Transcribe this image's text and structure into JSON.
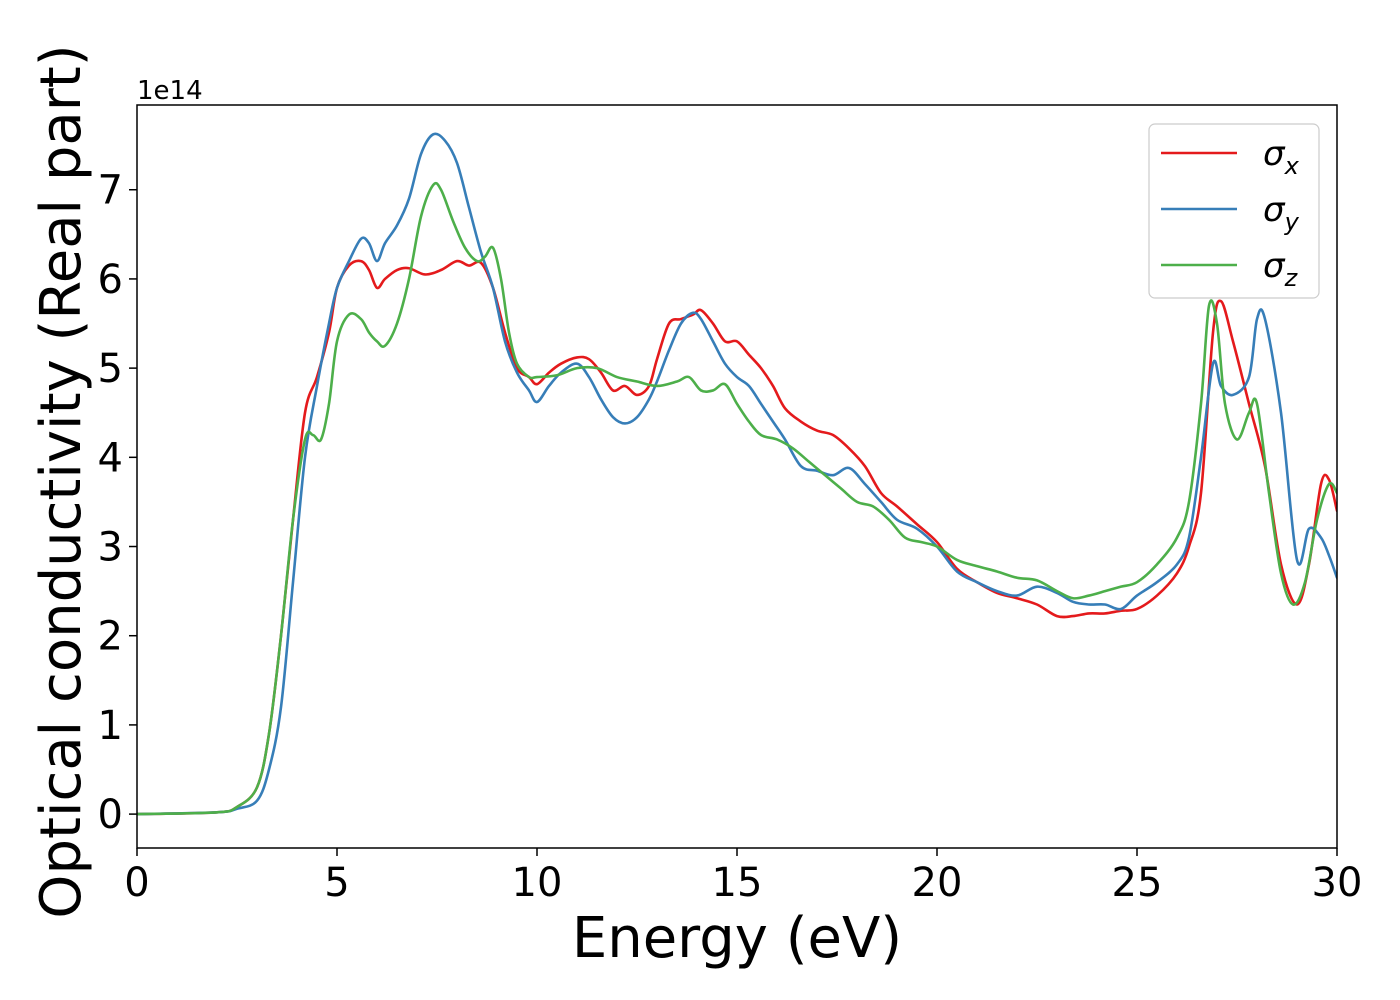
{
  "chart_data": {
    "type": "line",
    "title": "",
    "xlabel": "Energy (eV)",
    "ylabel": "Optical conductivity (Real part)",
    "y_offset_label": "1e14",
    "y_scale_factor": 100000000000000.0,
    "xlim": [
      0,
      30
    ],
    "ylim": [
      -0.38,
      7.95
    ],
    "x_ticks": [
      0,
      5,
      10,
      15,
      20,
      25,
      30
    ],
    "x_tick_labels": [
      "0",
      "5",
      "10",
      "15",
      "20",
      "25",
      "30"
    ],
    "y_ticks": [
      0,
      1,
      2,
      3,
      4,
      5,
      6,
      7
    ],
    "y_tick_labels": [
      "0",
      "1",
      "2",
      "3",
      "4",
      "5",
      "6",
      "7"
    ],
    "grid": false,
    "legend_position": "top-right",
    "series": [
      {
        "name": "σx",
        "symbol": "σ",
        "subscript": "x",
        "color": "#e41a1c",
        "x": [
          0,
          2,
          2.5,
          3.0,
          3.3,
          3.6,
          3.9,
          4.2,
          4.5,
          4.8,
          5.0,
          5.3,
          5.6,
          5.8,
          6.0,
          6.2,
          6.5,
          6.8,
          7.2,
          7.6,
          8.0,
          8.3,
          8.6,
          8.9,
          9.2,
          9.5,
          9.8,
          10.0,
          10.3,
          10.6,
          11.0,
          11.3,
          11.6,
          11.9,
          12.2,
          12.5,
          12.8,
          13.0,
          13.3,
          13.6,
          13.9,
          14.1,
          14.4,
          14.7,
          15.0,
          15.3,
          15.6,
          15.9,
          16.2,
          16.6,
          17.0,
          17.4,
          17.8,
          18.2,
          18.6,
          19.0,
          19.5,
          20.0,
          20.5,
          21.0,
          21.5,
          22.0,
          22.5,
          23.0,
          23.4,
          23.8,
          24.2,
          24.6,
          25.0,
          25.5,
          26.0,
          26.3,
          26.6,
          26.9,
          27.1,
          27.4,
          27.8,
          28.2,
          28.6,
          29.0,
          29.3,
          29.6,
          29.8,
          30.0
        ],
        "values": [
          0,
          0.02,
          0.08,
          0.3,
          0.9,
          2.0,
          3.3,
          4.5,
          4.9,
          5.4,
          5.9,
          6.15,
          6.2,
          6.1,
          5.9,
          6.0,
          6.1,
          6.12,
          6.05,
          6.1,
          6.2,
          6.15,
          6.18,
          5.9,
          5.4,
          5.0,
          4.9,
          4.82,
          4.95,
          5.05,
          5.12,
          5.1,
          4.95,
          4.75,
          4.8,
          4.7,
          4.8,
          5.1,
          5.5,
          5.55,
          5.6,
          5.65,
          5.5,
          5.3,
          5.3,
          5.15,
          5.0,
          4.8,
          4.55,
          4.4,
          4.3,
          4.25,
          4.1,
          3.9,
          3.6,
          3.45,
          3.25,
          3.05,
          2.75,
          2.6,
          2.48,
          2.42,
          2.35,
          2.22,
          2.22,
          2.25,
          2.25,
          2.28,
          2.3,
          2.45,
          2.7,
          3.0,
          3.6,
          5.4,
          5.75,
          5.3,
          4.6,
          3.9,
          2.8,
          2.35,
          2.8,
          3.7,
          3.75,
          3.4
        ]
      },
      {
        "name": "σy",
        "symbol": "σ",
        "subscript": "y",
        "color": "#377eb8",
        "x": [
          0,
          2,
          2.5,
          3.0,
          3.3,
          3.6,
          3.9,
          4.2,
          4.5,
          4.8,
          5.0,
          5.3,
          5.6,
          5.8,
          6.0,
          6.2,
          6.5,
          6.8,
          7.1,
          7.4,
          7.7,
          8.0,
          8.3,
          8.6,
          8.9,
          9.2,
          9.5,
          9.8,
          10.0,
          10.3,
          10.6,
          11.0,
          11.3,
          11.6,
          11.9,
          12.2,
          12.5,
          12.8,
          13.0,
          13.3,
          13.6,
          13.9,
          14.1,
          14.4,
          14.7,
          15.0,
          15.3,
          15.6,
          15.9,
          16.2,
          16.6,
          17.0,
          17.4,
          17.8,
          18.2,
          18.6,
          19.0,
          19.5,
          20.0,
          20.5,
          21.0,
          21.5,
          22.0,
          22.5,
          23.0,
          23.4,
          23.8,
          24.2,
          24.6,
          25.0,
          25.5,
          26.0,
          26.3,
          26.6,
          26.9,
          27.1,
          27.4,
          27.8,
          28.0,
          28.2,
          28.6,
          29.0,
          29.3,
          29.6,
          29.8,
          30.0
        ],
        "values": [
          0,
          0.02,
          0.06,
          0.15,
          0.5,
          1.2,
          2.6,
          4.0,
          4.8,
          5.5,
          5.9,
          6.2,
          6.45,
          6.4,
          6.2,
          6.4,
          6.6,
          6.9,
          7.4,
          7.62,
          7.55,
          7.3,
          6.8,
          6.3,
          5.9,
          5.3,
          4.95,
          4.75,
          4.62,
          4.8,
          4.95,
          5.05,
          4.9,
          4.65,
          4.45,
          4.38,
          4.45,
          4.65,
          4.85,
          5.2,
          5.5,
          5.62,
          5.55,
          5.3,
          5.05,
          4.9,
          4.8,
          4.6,
          4.4,
          4.2,
          3.9,
          3.85,
          3.8,
          3.88,
          3.7,
          3.5,
          3.3,
          3.2,
          3.0,
          2.72,
          2.6,
          2.5,
          2.45,
          2.55,
          2.48,
          2.38,
          2.35,
          2.35,
          2.3,
          2.45,
          2.6,
          2.8,
          3.1,
          4.0,
          5.05,
          4.8,
          4.7,
          4.9,
          5.55,
          5.55,
          4.5,
          2.85,
          3.2,
          3.1,
          2.9,
          2.65
        ]
      },
      {
        "name": "σz",
        "symbol": "σ",
        "subscript": "z",
        "color": "#4daf4a",
        "x": [
          0,
          2,
          2.5,
          3.0,
          3.3,
          3.6,
          3.9,
          4.2,
          4.4,
          4.6,
          4.8,
          5.0,
          5.3,
          5.6,
          5.8,
          6.0,
          6.2,
          6.5,
          6.8,
          7.1,
          7.4,
          7.6,
          7.9,
          8.2,
          8.5,
          8.7,
          8.9,
          9.1,
          9.3,
          9.5,
          9.8,
          10.0,
          10.5,
          11.0,
          11.5,
          12.0,
          12.5,
          13.0,
          13.5,
          13.8,
          14.1,
          14.4,
          14.7,
          15.0,
          15.3,
          15.6,
          16.0,
          16.4,
          16.8,
          17.2,
          17.6,
          18.0,
          18.4,
          18.8,
          19.2,
          19.6,
          20.0,
          20.5,
          21.0,
          21.5,
          22.0,
          22.5,
          23.0,
          23.4,
          23.8,
          24.2,
          24.6,
          25.0,
          25.5,
          26.0,
          26.3,
          26.6,
          26.8,
          27.0,
          27.2,
          27.5,
          27.8,
          28.0,
          28.3,
          28.6,
          28.9,
          29.2,
          29.5,
          29.8,
          30.0
        ],
        "values": [
          0,
          0.02,
          0.08,
          0.3,
          0.9,
          2.0,
          3.3,
          4.2,
          4.25,
          4.2,
          4.6,
          5.3,
          5.6,
          5.55,
          5.4,
          5.3,
          5.25,
          5.5,
          6.0,
          6.7,
          7.05,
          7.0,
          6.65,
          6.35,
          6.2,
          6.25,
          6.35,
          6.0,
          5.4,
          5.05,
          4.9,
          4.9,
          4.92,
          5.0,
          5.0,
          4.9,
          4.85,
          4.8,
          4.85,
          4.9,
          4.75,
          4.75,
          4.82,
          4.6,
          4.4,
          4.25,
          4.2,
          4.1,
          3.95,
          3.8,
          3.65,
          3.5,
          3.45,
          3.3,
          3.1,
          3.05,
          3.0,
          2.85,
          2.78,
          2.72,
          2.65,
          2.62,
          2.5,
          2.42,
          2.45,
          2.5,
          2.55,
          2.6,
          2.8,
          3.1,
          3.5,
          4.6,
          5.7,
          5.5,
          4.6,
          4.2,
          4.5,
          4.6,
          3.6,
          2.7,
          2.35,
          2.6,
          3.3,
          3.7,
          3.6
        ]
      }
    ]
  }
}
